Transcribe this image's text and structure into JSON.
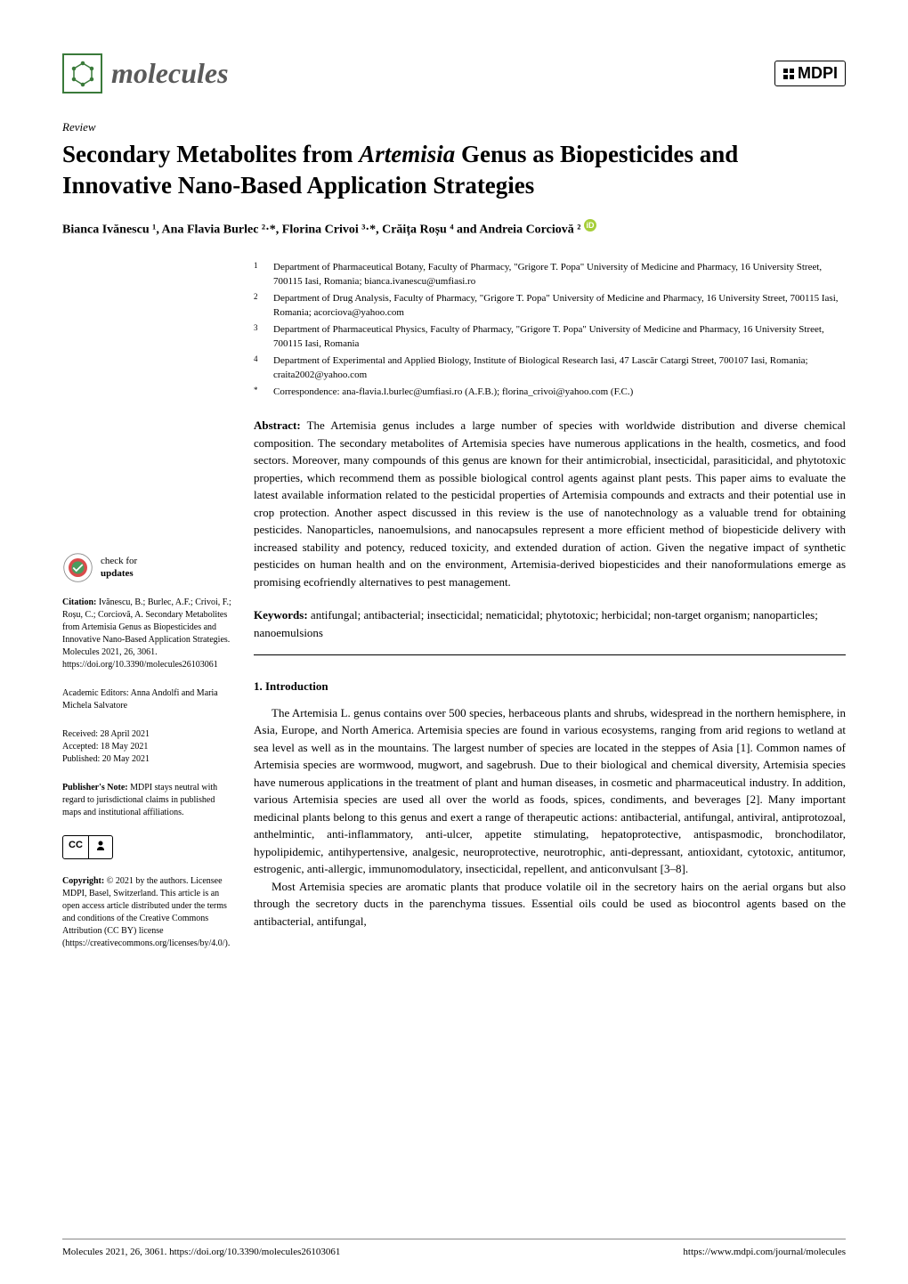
{
  "header": {
    "journal_name": "molecules",
    "publisher_logo": "MDPI"
  },
  "article": {
    "type": "Review",
    "title_pre": "Secondary Metabolites from ",
    "title_em": "Artemisia",
    "title_post": " Genus as Biopesticides and Innovative Nano-Based Application Strategies",
    "authors_html": "Bianca Ivănescu ¹, Ana Flavia Burlec ²·*, Florina Crivoi ³·*, Crăița Roșu ⁴ and Andreia Corciovă ²"
  },
  "affiliations": [
    {
      "num": "1",
      "text": "Department of Pharmaceutical Botany, Faculty of Pharmacy, \"Grigore T. Popa\" University of Medicine and Pharmacy, 16 University Street, 700115 Iasi, Romania; bianca.ivanescu@umfiasi.ro"
    },
    {
      "num": "2",
      "text": "Department of Drug Analysis, Faculty of Pharmacy, \"Grigore T. Popa\" University of Medicine and Pharmacy, 16 University Street, 700115 Iasi, Romania; acorciova@yahoo.com"
    },
    {
      "num": "3",
      "text": "Department of Pharmaceutical Physics, Faculty of Pharmacy, \"Grigore T. Popa\" University of Medicine and Pharmacy, 16 University Street, 700115 Iasi, Romania"
    },
    {
      "num": "4",
      "text": "Department of Experimental and Applied Biology, Institute of Biological Research Iasi, 47 Lascăr Catargi Street, 700107 Iasi, Romania; craita2002@yahoo.com"
    },
    {
      "num": "*",
      "text": "Correspondence: ana-flavia.l.burlec@umfiasi.ro (A.F.B.); florina_crivoi@yahoo.com (F.C.)"
    }
  ],
  "abstract": {
    "label": "Abstract:",
    "text": "The Artemisia genus includes a large number of species with worldwide distribution and diverse chemical composition. The secondary metabolites of Artemisia species have numerous applications in the health, cosmetics, and food sectors. Moreover, many compounds of this genus are known for their antimicrobial, insecticidal, parasiticidal, and phytotoxic properties, which recommend them as possible biological control agents against plant pests. This paper aims to evaluate the latest available information related to the pesticidal properties of Artemisia compounds and extracts and their potential use in crop protection. Another aspect discussed in this review is the use of nanotechnology as a valuable trend for obtaining pesticides. Nanoparticles, nanoemulsions, and nanocapsules represent a more efficient method of biopesticide delivery with increased stability and potency, reduced toxicity, and extended duration of action. Given the negative impact of synthetic pesticides on human health and on the environment, Artemisia-derived biopesticides and their nanoformulations emerge as promising ecofriendly alternatives to pest management."
  },
  "keywords": {
    "label": "Keywords:",
    "text": "antifungal; antibacterial; insecticidal; nematicidal; phytotoxic; herbicidal; non-target organism; nanoparticles; nanoemulsions"
  },
  "sidebar": {
    "check_updates_line1": "check for",
    "check_updates_line2": "updates",
    "citation_label": "Citation:",
    "citation_text": "Ivănescu, B.; Burlec, A.F.; Crivoi, F.; Roșu, C.; Corciovă, A. Secondary Metabolites from Artemisia Genus as Biopesticides and Innovative Nano-Based Application Strategies. Molecules 2021, 26, 3061. https://doi.org/10.3390/molecules26103061",
    "editors_label": "Academic Editors:",
    "editors_text": "Anna Andolfi and Maria Michela Salvatore",
    "received": "Received: 28 April 2021",
    "accepted": "Accepted: 18 May 2021",
    "published": "Published: 20 May 2021",
    "publishers_note_label": "Publisher's Note:",
    "publishers_note_text": "MDPI stays neutral with regard to jurisdictional claims in published maps and institutional affiliations.",
    "copyright_label": "Copyright:",
    "copyright_text": "© 2021 by the authors. Licensee MDPI, Basel, Switzerland. This article is an open access article distributed under the terms and conditions of the Creative Commons Attribution (CC BY) license (https://creativecommons.org/licenses/by/4.0/)."
  },
  "section": {
    "heading": "1. Introduction",
    "p1": "The Artemisia L. genus contains over 500 species, herbaceous plants and shrubs, widespread in the northern hemisphere, in Asia, Europe, and North America. Artemisia species are found in various ecosystems, ranging from arid regions to wetland at sea level as well as in the mountains. The largest number of species are located in the steppes of Asia [1]. Common names of Artemisia species are wormwood, mugwort, and sagebrush. Due to their biological and chemical diversity, Artemisia species have numerous applications in the treatment of plant and human diseases, in cosmetic and pharmaceutical industry. In addition, various Artemisia species are used all over the world as foods, spices, condiments, and beverages [2]. Many important medicinal plants belong to this genus and exert a range of therapeutic actions: antibacterial, antifungal, antiviral, antiprotozoal, anthelmintic, anti-inflammatory, anti-ulcer, appetite stimulating, hepatoprotective, antispasmodic, bronchodilator, hypolipidemic, antihypertensive, analgesic, neuroprotective, neurotrophic, anti-depressant, antioxidant, cytotoxic, antitumor, estrogenic, anti-allergic, immunomodulatory, insecticidal, repellent, and anticonvulsant [3–8].",
    "p2": "Most Artemisia species are aromatic plants that produce volatile oil in the secretory hairs on the aerial organs but also through the secretory ducts in the parenchyma tissues. Essential oils could be used as biocontrol agents based on the antibacterial, antifungal,"
  },
  "footer": {
    "left": "Molecules 2021, 26, 3061. https://doi.org/10.3390/molecules26103061",
    "right": "https://www.mdpi.com/journal/molecules"
  },
  "colors": {
    "logo_green": "#3a7a3a",
    "text_gray": "#5a5a5a",
    "link_blue": "#1a5490",
    "orcid_green": "#a6ce39"
  }
}
